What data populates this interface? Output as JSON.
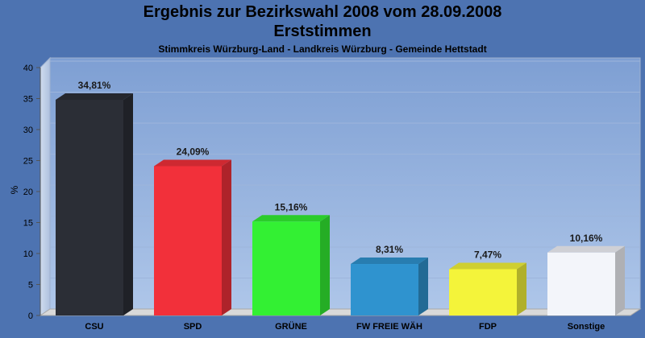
{
  "chart_data": {
    "type": "bar",
    "title": "Ergebnis zur Bezirkswahl 2008 vom 28.09.2008",
    "title2": "Erststimmen",
    "subtitle": "Stimmkreis Würzburg-Land - Landkreis Würzburg - Gemeinde Hettstadt",
    "ylabel": "%",
    "ylim": [
      0,
      40
    ],
    "yticks": [
      0,
      5,
      10,
      15,
      20,
      25,
      30,
      35,
      40
    ],
    "categories": [
      "CSU",
      "SPD",
      "GRÜNE",
      "FW FREIE WÄH",
      "FDP",
      "Sonstige"
    ],
    "values": [
      34.81,
      24.09,
      15.16,
      8.31,
      7.47,
      10.16
    ],
    "value_labels": [
      "34,81%",
      "24,09%",
      "15,16%",
      "8,31%",
      "7,47%",
      "10,16%"
    ],
    "colors": [
      "#2b2e36",
      "#f2303a",
      "#33f033",
      "#2f93cf",
      "#f4f43a",
      "#f3f5fa"
    ],
    "grid": true
  }
}
